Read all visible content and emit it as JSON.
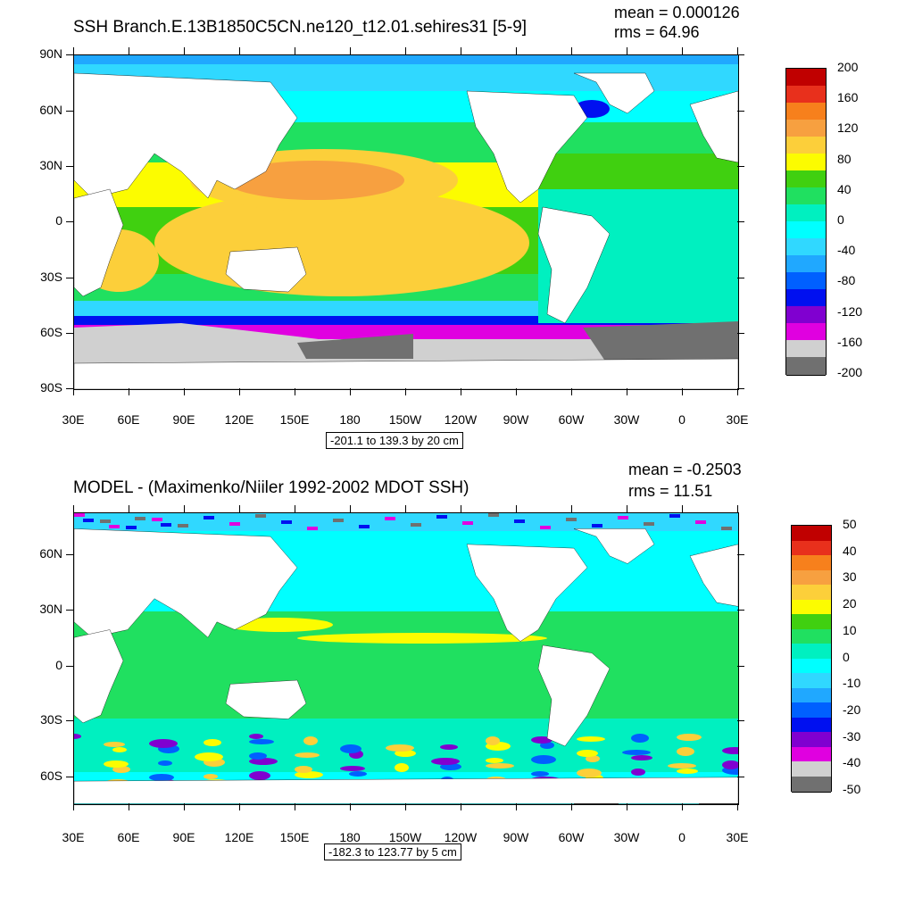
{
  "panels": [
    {
      "title": "SSH Branch.E.13B1850C5CN.ne120_t12.01.sehires31 [5-9]",
      "mean": "mean = 0.000126",
      "rms": "rms = 64.96",
      "range": "-201.1 to 139.3 by 20 cm",
      "lat_labels": [
        "90N",
        "60N",
        "30N",
        "0",
        "30S",
        "60S",
        "90S"
      ],
      "lon_labels": [
        "30E",
        "60E",
        "90E",
        "120E",
        "150E",
        "180",
        "150W",
        "120W",
        "90W",
        "60W",
        "30W",
        "0",
        "30E"
      ],
      "colorbar_labels": [
        "200",
        "160",
        "120",
        "80",
        "40",
        "0",
        "-40",
        "-80",
        "-120",
        "-160",
        "-200"
      ],
      "colors": [
        "#c00000",
        "#e8301c",
        "#f7801c",
        "#f7a040",
        "#fccf3a",
        "#fcfc00",
        "#40d010",
        "#20e060",
        "#00f0c0",
        "#00ffff",
        "#30d8ff",
        "#20a8ff",
        "#0060ff",
        "#0010f0",
        "#8000d0",
        "#e000e0",
        "#d0d0d0",
        "#707070"
      ]
    },
    {
      "title": "MODEL - (Maximenko/Niiler 1992-2002 MDOT SSH)",
      "mean": "mean = -0.2503",
      "rms": "rms = 11.51",
      "range": "-182.3 to 123.77 by 5 cm",
      "lat_labels": [
        "60N",
        "30N",
        "0",
        "30S",
        "60S"
      ],
      "lon_labels": [
        "30E",
        "60E",
        "90E",
        "120E",
        "150E",
        "180",
        "150W",
        "120W",
        "90W",
        "60W",
        "30W",
        "0",
        "30E"
      ],
      "colorbar_labels": [
        "50",
        "40",
        "30",
        "20",
        "10",
        "0",
        "-10",
        "-20",
        "-30",
        "-40",
        "-50"
      ],
      "colors": [
        "#c00000",
        "#e8301c",
        "#f7801c",
        "#f7a040",
        "#fccf3a",
        "#fcfc00",
        "#40d010",
        "#20e060",
        "#00f0c0",
        "#00ffff",
        "#30d8ff",
        "#20a8ff",
        "#0060ff",
        "#0010f0",
        "#8000d0",
        "#e000e0",
        "#d0d0d0",
        "#707070"
      ]
    }
  ]
}
